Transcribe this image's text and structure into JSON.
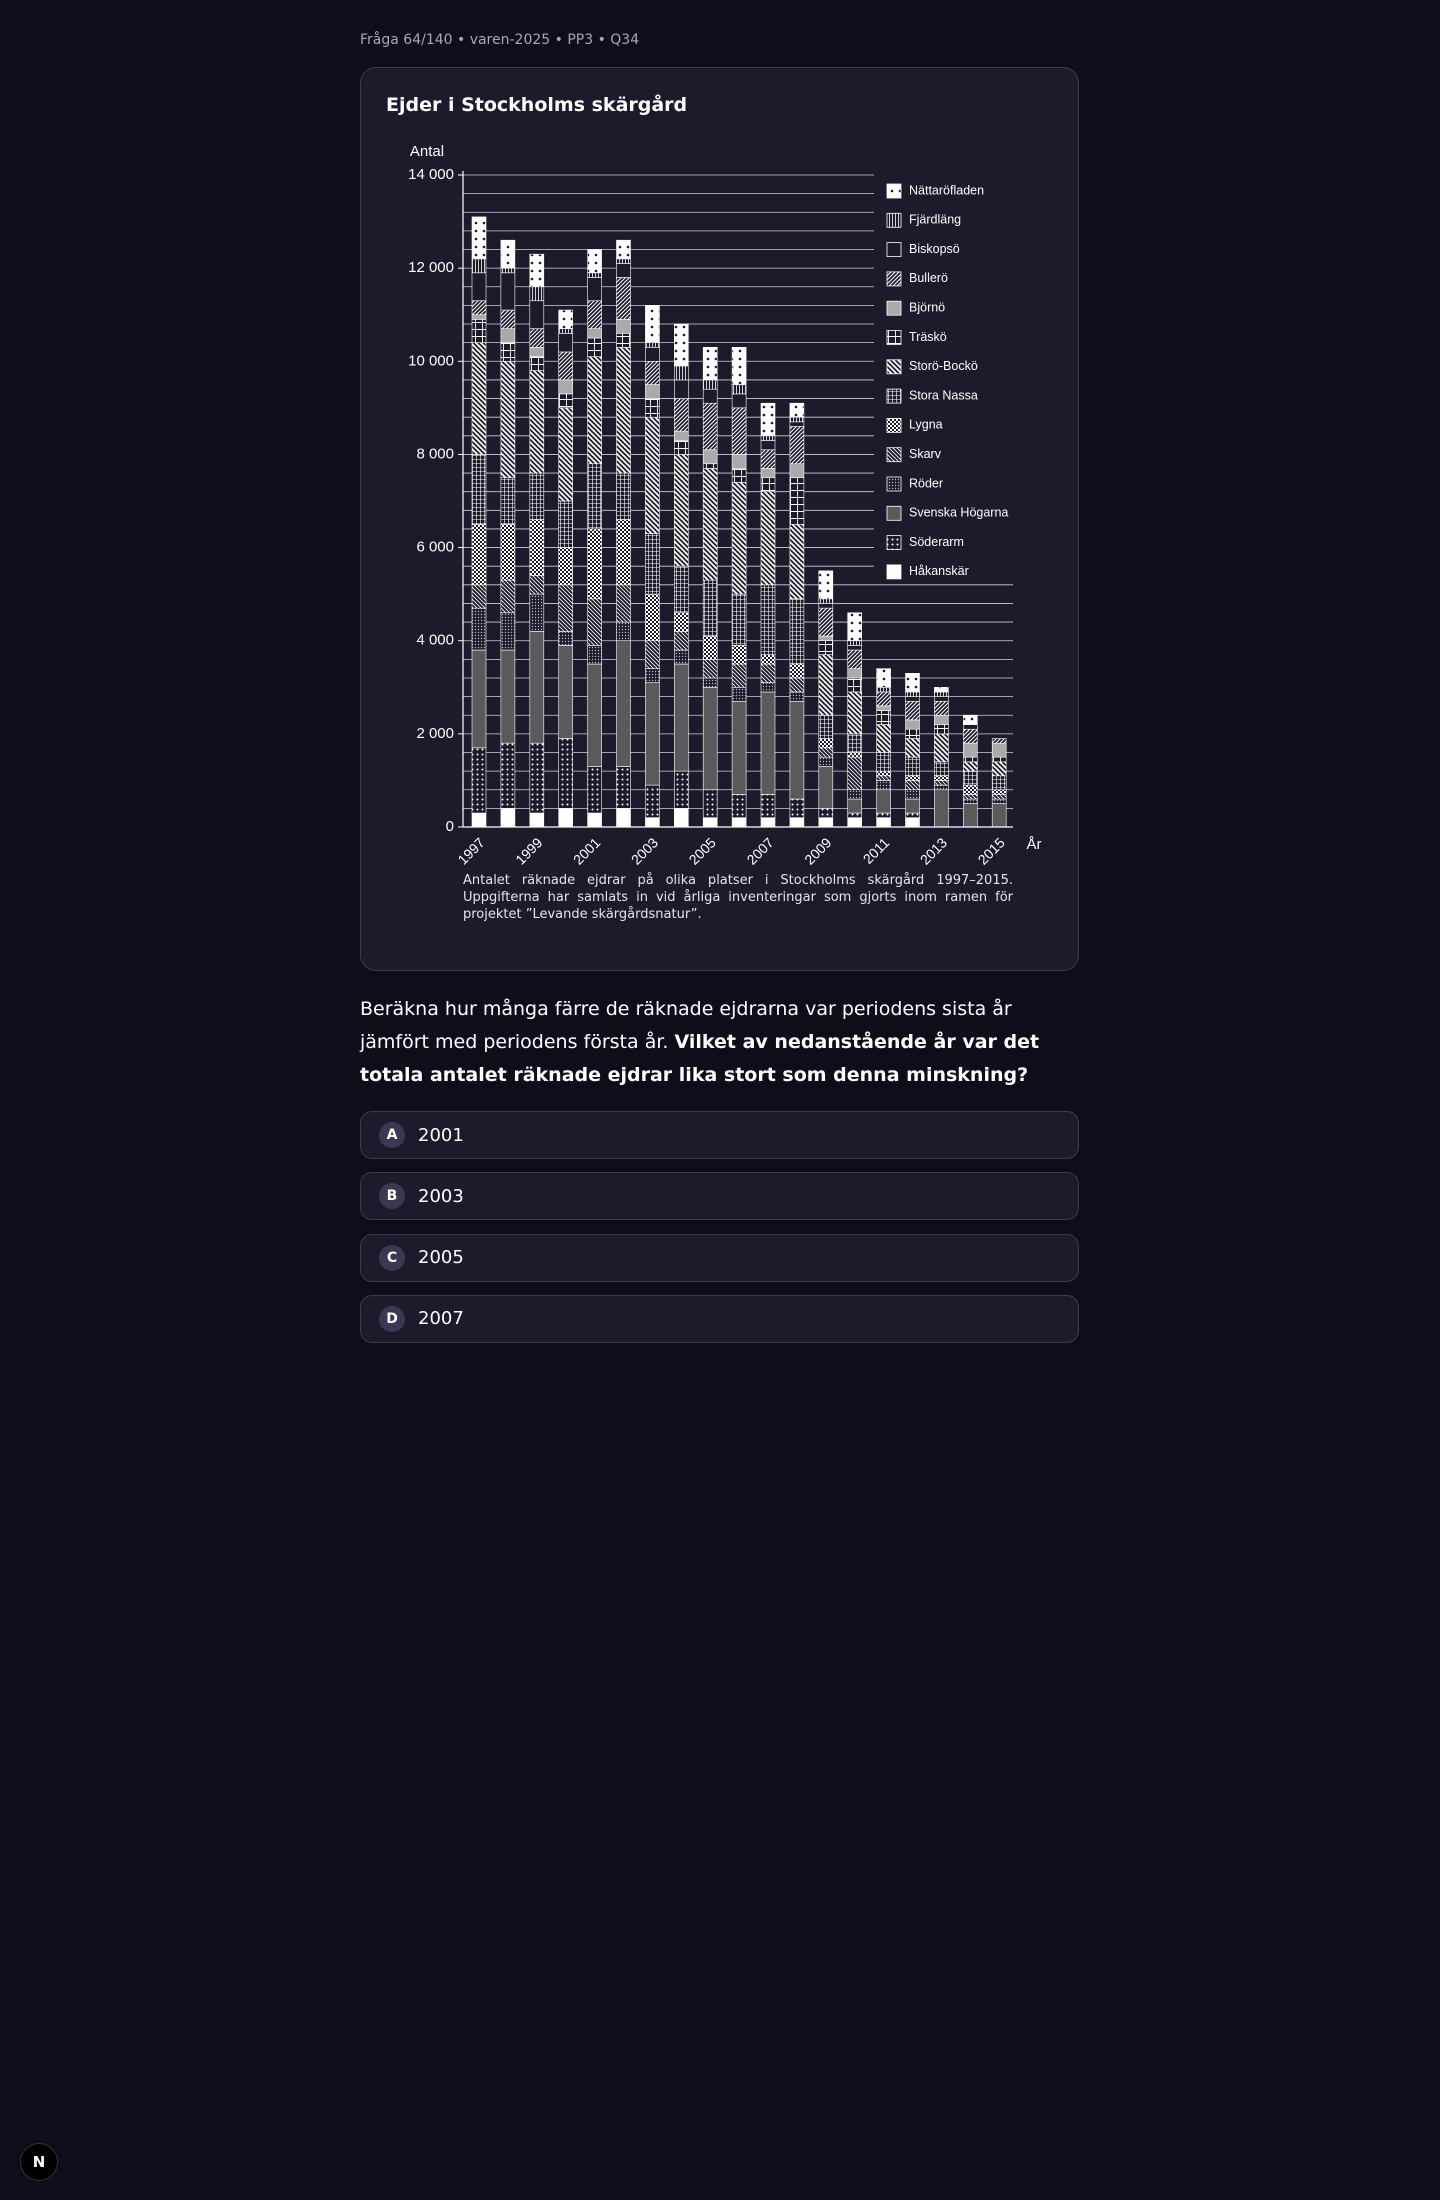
{
  "header": "Fråga 64/140 • varen-2025 • PP3 • Q34",
  "chart_data": {
    "type": "stacked-bar",
    "title": "Ejder i Stockholms skärgård",
    "y_label": "Antal",
    "x_label": "År",
    "caption": "Antalet räknade ejdrar på olika platser i Stockholms skärgård 1997–2015. Uppgifterna har samlats in vid årliga inventeringar som gjorts inom ramen för projektet ”Levande skärgårdsnatur”.",
    "categories": [
      1997,
      null,
      1999,
      null,
      2001,
      null,
      2003,
      null,
      2005,
      null,
      2007,
      null,
      2009,
      null,
      2011,
      null,
      2013,
      null,
      2015
    ],
    "ylim": [
      0,
      14000
    ],
    "yticks": [
      0,
      {
        "value": 2000,
        "label": "2 000"
      },
      {
        "value": 4000,
        "label": "4 000"
      },
      {
        "value": 6000,
        "label": "6 000"
      },
      {
        "value": 8000,
        "label": "8 000"
      },
      {
        "value": 10000,
        "label": "10 000"
      },
      {
        "value": 12000,
        "label": "12 000"
      },
      {
        "value": 14000,
        "label": "14 000"
      }
    ],
    "minor_grid": [
      400,
      800,
      1200,
      1600,
      2000,
      2400,
      2800,
      3200,
      3600,
      4000,
      4400,
      4800,
      5200,
      5600,
      6000,
      6400,
      6800,
      7200,
      7600,
      8000,
      8400,
      8800,
      9200,
      9600,
      10000,
      10400,
      10800,
      11200,
      11600,
      12000,
      12400,
      12800,
      13200,
      13600,
      14000
    ],
    "series": [
      {
        "name": "Håkanskär",
        "color": "#ffffff",
        "pattern": "solid",
        "values": [
          300,
          400,
          300,
          400,
          300,
          400,
          200,
          400,
          200,
          200,
          200,
          200,
          200,
          200,
          200,
          200,
          0,
          0,
          0
        ]
      },
      {
        "name": "Söderarm",
        "color": "#ffffff",
        "pattern": "dots",
        "values": [
          1400,
          1400,
          1500,
          1500,
          1000,
          900,
          700,
          800,
          600,
          500,
          500,
          400,
          200,
          100,
          100,
          100,
          0,
          0,
          0
        ]
      },
      {
        "name": "Svenska Högarna",
        "color": "#5a5a5a",
        "pattern": "solid",
        "values": [
          2100,
          2000,
          2400,
          2000,
          2200,
          2700,
          2200,
          2300,
          2200,
          2000,
          2200,
          2100,
          900,
          300,
          500,
          300,
          800,
          500,
          500
        ]
      },
      {
        "name": "Röder",
        "color": "#bbbbbb",
        "pattern": "fine-dots",
        "values": [
          900,
          800,
          800,
          300,
          400,
          400,
          300,
          300,
          200,
          300,
          200,
          200,
          200,
          200,
          200,
          200,
          100,
          100,
          100
        ]
      },
      {
        "name": "Skarv",
        "color": "#ffffff",
        "pattern": "diagonal",
        "values": [
          500,
          700,
          400,
          1000,
          1000,
          800,
          600,
          400,
          400,
          500,
          400,
          300,
          200,
          700,
          100,
          200,
          100,
          100,
          100
        ]
      },
      {
        "name": "Lygna",
        "color": "#ffffff",
        "pattern": "checker",
        "values": [
          1300,
          1200,
          1200,
          800,
          1500,
          1400,
          1000,
          400,
          500,
          400,
          200,
          300,
          200,
          100,
          100,
          100,
          100,
          200,
          100
        ]
      },
      {
        "name": "Stora Nassa",
        "color": "#ffffff",
        "pattern": "grid",
        "values": [
          1500,
          1000,
          1000,
          1000,
          1400,
          1000,
          1300,
          1000,
          1200,
          1100,
          1500,
          1400,
          500,
          400,
          400,
          400,
          300,
          300,
          300
        ]
      },
      {
        "name": "Storö-Bockö",
        "color": "#ffffff",
        "pattern": "bold-diagonal",
        "values": [
          2400,
          2500,
          2200,
          2000,
          2300,
          2700,
          2500,
          2400,
          2400,
          2400,
          2000,
          1600,
          1300,
          900,
          600,
          400,
          600,
          200,
          300
        ]
      },
      {
        "name": "Träskö",
        "color": "#ffffff",
        "pattern": "cross",
        "values": [
          500,
          400,
          300,
          300,
          400,
          300,
          400,
          300,
          100,
          300,
          300,
          1000,
          300,
          300,
          300,
          200,
          200,
          100,
          100
        ]
      },
      {
        "name": "Björnö",
        "color": "#aaaaaa",
        "pattern": "solid",
        "values": [
          100,
          300,
          200,
          300,
          200,
          300,
          300,
          200,
          300,
          300,
          200,
          300,
          100,
          200,
          100,
          200,
          200,
          300,
          300
        ]
      },
      {
        "name": "Bullerö",
        "color": "#ffffff",
        "pattern": "hatch",
        "values": [
          300,
          400,
          400,
          600,
          600,
          900,
          500,
          700,
          1000,
          1000,
          400,
          800,
          600,
          400,
          300,
          400,
          300,
          300,
          100
        ]
      },
      {
        "name": "Biskopsö",
        "color": "#ffffff",
        "pattern": "outline",
        "values": [
          600,
          800,
          600,
          400,
          500,
          300,
          300,
          400,
          300,
          300,
          200,
          100,
          100,
          100,
          0,
          100,
          100,
          100,
          0
        ]
      },
      {
        "name": "Fjärdläng",
        "color": "#ffffff",
        "pattern": "vertical",
        "values": [
          300,
          100,
          300,
          100,
          100,
          100,
          100,
          300,
          200,
          200,
          100,
          100,
          100,
          100,
          100,
          100,
          100,
          0,
          0
        ]
      },
      {
        "name": "Nättaröfladen",
        "color": "#ffffff",
        "pattern": "spots",
        "values": [
          900,
          600,
          700,
          400,
          500,
          400,
          800,
          900,
          700,
          800,
          700,
          300,
          600,
          600,
          400,
          400,
          100,
          200,
          0
        ]
      }
    ]
  },
  "question": {
    "text": "Beräkna hur många färre de räknade ejdrarna var periodens sista år jämfört med periodens första år.",
    "bold": "Vilket av nedanstående år var det totala antalet räknade ejdrar lika stort som denna minskning?"
  },
  "options": [
    {
      "letter": "A",
      "text": "2001"
    },
    {
      "letter": "B",
      "text": "2003"
    },
    {
      "letter": "C",
      "text": "2005"
    },
    {
      "letter": "D",
      "text": "2007"
    }
  ],
  "badge": "N"
}
